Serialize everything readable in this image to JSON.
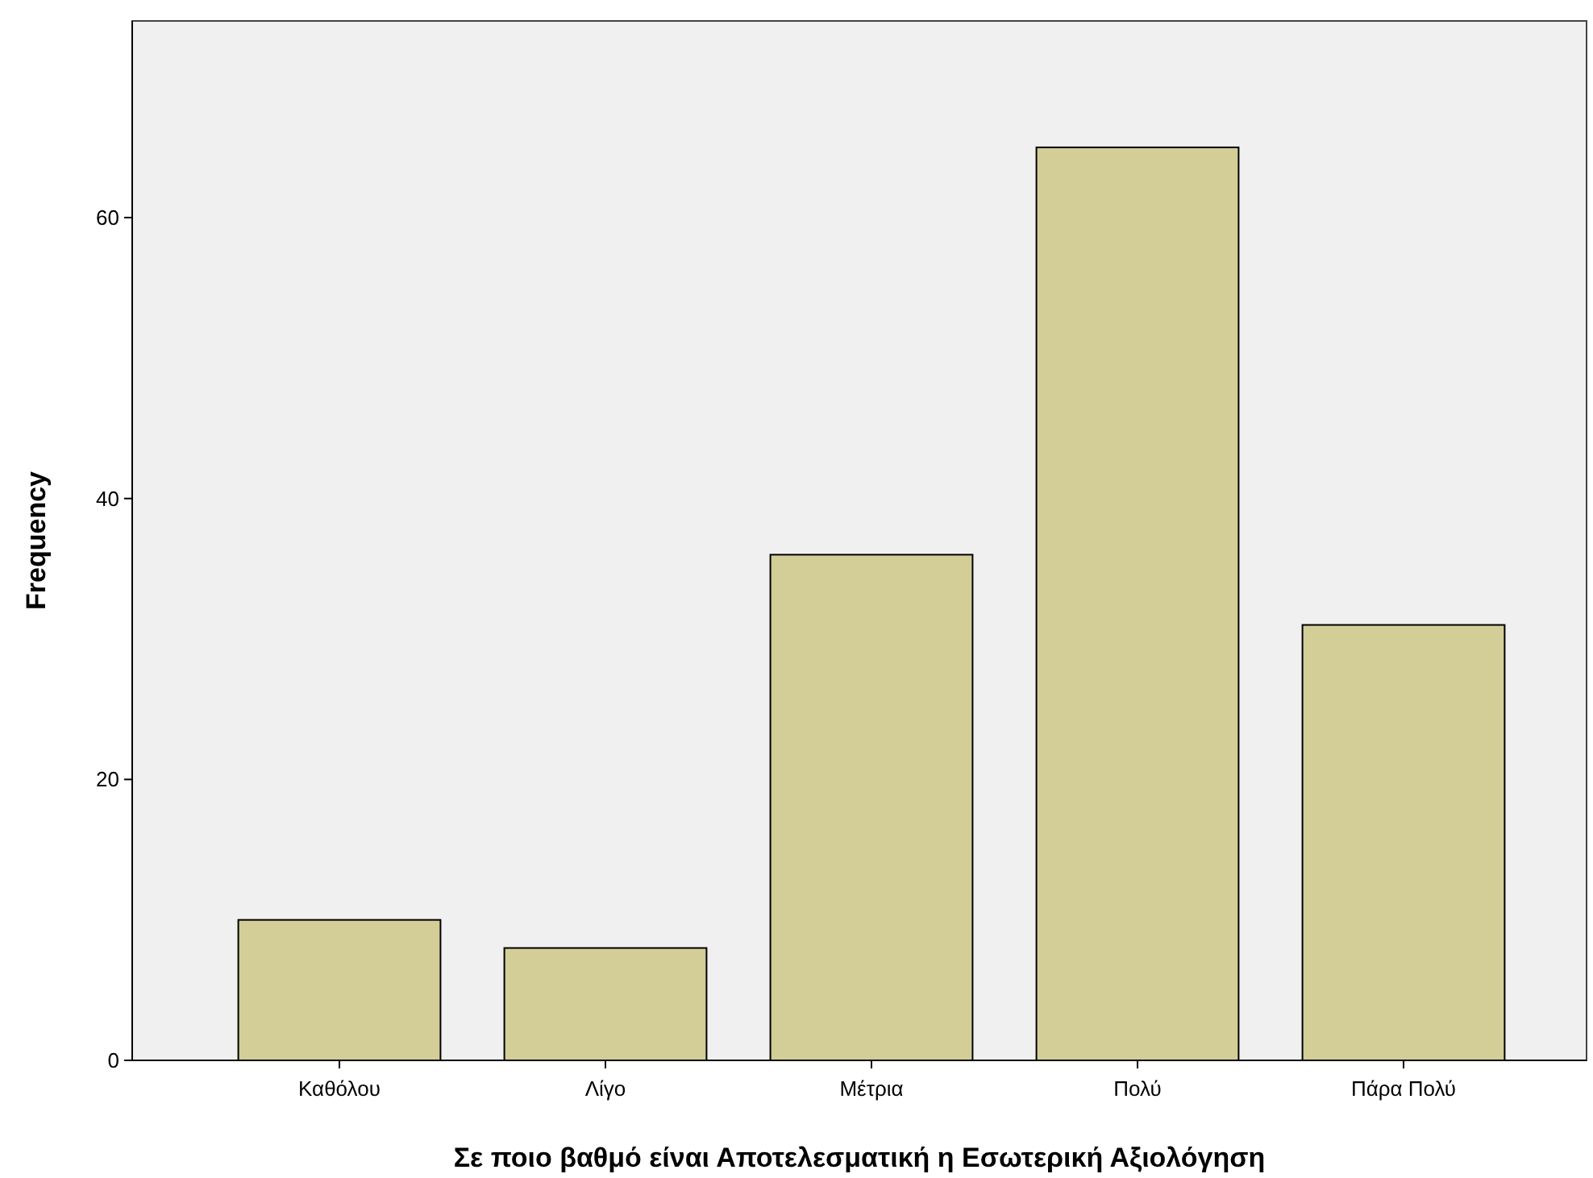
{
  "chart_data": {
    "type": "bar",
    "xlabel": "Σε ποιο βαθμό είναι Αποτελεσματική η Εσωτερική Αξιολόγηση",
    "ylabel": "Frequency",
    "categories": [
      "Καθόλου",
      "Λίγο",
      "Μέτρια",
      "Πολύ",
      "Πάρα Πολύ"
    ],
    "values": [
      10,
      8,
      36,
      65,
      31
    ],
    "color": "#d3ce97",
    "ylim": [
      0,
      74
    ],
    "yticks": [
      0,
      20,
      40,
      60
    ],
    "grid": false
  }
}
